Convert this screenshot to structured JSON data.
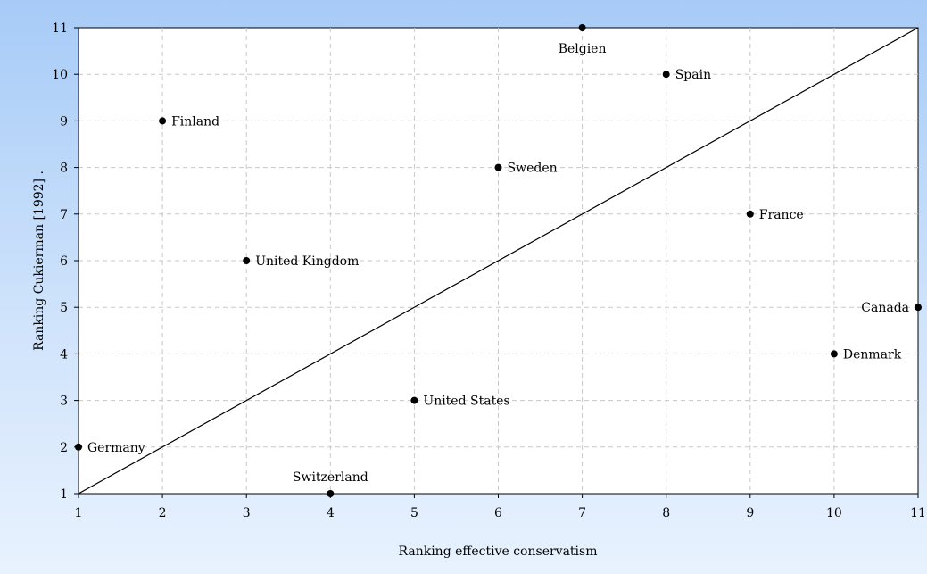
{
  "chart_data": {
    "type": "scatter",
    "xlabel": "Ranking effective conservatism",
    "ylabel": "Ranking Cukierman [1992] .",
    "xlim": [
      1,
      11
    ],
    "ylim": [
      1,
      11
    ],
    "xticks": [
      1,
      2,
      3,
      4,
      5,
      6,
      7,
      8,
      9,
      10,
      11
    ],
    "yticks": [
      1,
      2,
      3,
      4,
      5,
      6,
      7,
      8,
      9,
      10,
      11
    ],
    "grid": true,
    "reference_line": {
      "x": [
        1,
        11
      ],
      "y": [
        1,
        11
      ]
    },
    "points": [
      {
        "label": "Belgien",
        "x": 7,
        "y": 11,
        "label_pos": "below"
      },
      {
        "label": "Spain",
        "x": 8,
        "y": 10,
        "label_pos": "right"
      },
      {
        "label": "Finland",
        "x": 2,
        "y": 9,
        "label_pos": "right"
      },
      {
        "label": "Sweden",
        "x": 6,
        "y": 8,
        "label_pos": "right"
      },
      {
        "label": "France",
        "x": 9,
        "y": 7,
        "label_pos": "right"
      },
      {
        "label": "United Kingdom",
        "x": 3,
        "y": 6,
        "label_pos": "right"
      },
      {
        "label": "Canada",
        "x": 11,
        "y": 5,
        "label_pos": "left"
      },
      {
        "label": "Denmark",
        "x": 10,
        "y": 4,
        "label_pos": "right"
      },
      {
        "label": "United States",
        "x": 5,
        "y": 3,
        "label_pos": "right"
      },
      {
        "label": "Germany",
        "x": 1,
        "y": 2,
        "label_pos": "right"
      },
      {
        "label": "Switzerland",
        "x": 4,
        "y": 1,
        "label_pos": "above"
      }
    ]
  }
}
